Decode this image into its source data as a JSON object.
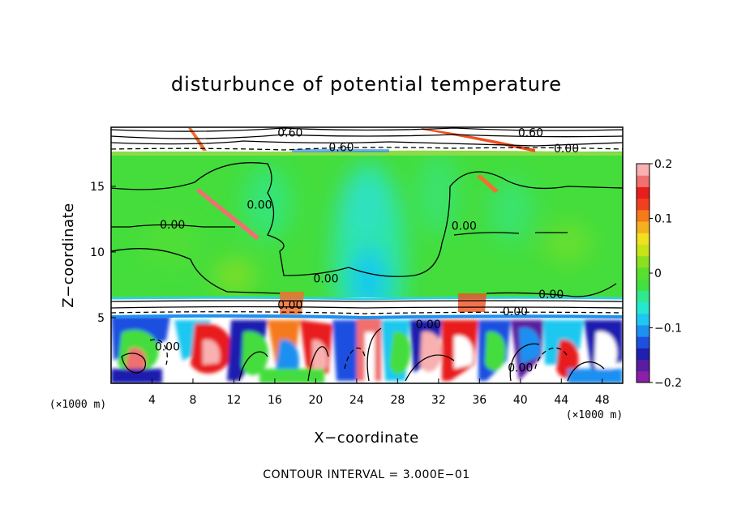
{
  "chart_data": {
    "type": "heatmap",
    "title": "disturbunce of potential temperature",
    "xlabel": "X−coordinate",
    "ylabel": "Z−coordinate",
    "x_unit": "(×1000 m)",
    "x_unit_right": "(×1000 m)",
    "xlim": [
      0,
      50
    ],
    "ylim": [
      0,
      19.5
    ],
    "x_ticks": [
      4,
      8,
      12,
      16,
      20,
      24,
      28,
      32,
      36,
      40,
      44,
      48
    ],
    "y_ticks": [
      5,
      10,
      15
    ],
    "colorbar": {
      "range": [
        -0.2,
        0.2
      ],
      "ticks": [
        {
          "value": 0.2,
          "label": "0.2"
        },
        {
          "value": 0.1,
          "label": "0.1"
        },
        {
          "value": 0,
          "label": "0"
        },
        {
          "value": -0.1,
          "label": "−0.1"
        },
        {
          "value": -0.2,
          "label": "−0.2"
        }
      ],
      "colors": [
        "#8b1fa8",
        "#5a1ca0",
        "#1f1fb0",
        "#1e50e0",
        "#1e90f0",
        "#1ec8f0",
        "#25e8d0",
        "#30e890",
        "#44e040",
        "#58e030",
        "#8ce020",
        "#c8e418",
        "#f0e020",
        "#f5b020",
        "#f57a1a",
        "#f04020",
        "#e81e1e",
        "#f07070",
        "#f8b0b0"
      ]
    },
    "contour_labels": [
      {
        "text": "0.00",
        "x": 6.0,
        "y": 12.1
      },
      {
        "text": "0.00",
        "x": 14.5,
        "y": 13.6
      },
      {
        "text": "0.00",
        "x": 17.5,
        "y": 6.0
      },
      {
        "text": "0.00",
        "x": 21.0,
        "y": 8.0
      },
      {
        "text": "0.00",
        "x": 34.5,
        "y": 12.0
      },
      {
        "text": "0.00",
        "x": 43.0,
        "y": 6.8
      },
      {
        "text": "0.00",
        "x": 44.5,
        "y": 17.9
      },
      {
        "text": "0.00",
        "x": 31.0,
        "y": 4.5
      },
      {
        "text": "0.00",
        "x": 39.5,
        "y": 5.5
      },
      {
        "text": "0.00",
        "x": 5.5,
        "y": 2.8
      },
      {
        "text": "0.00",
        "x": 40.0,
        "y": 1.2
      },
      {
        "text": "0.60",
        "x": 17.5,
        "y": 19.1
      },
      {
        "text": "0.60",
        "x": 22.5,
        "y": 18.0
      },
      {
        "text": "0.60",
        "x": 41.0,
        "y": 19.1
      }
    ],
    "note": "CONTOUR INTERVAL = 3.000E−01"
  }
}
